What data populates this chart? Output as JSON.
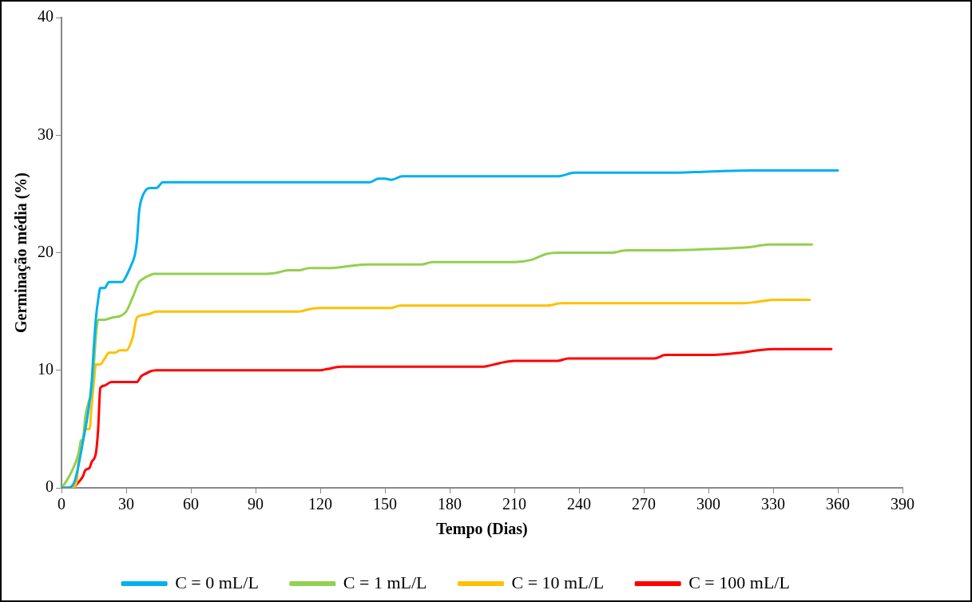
{
  "chart_data": {
    "type": "line",
    "xlabel": "Tempo (Dias)",
    "ylabel": "Germinação média (%)",
    "xlim": [
      0,
      390
    ],
    "xticks": [
      0,
      30,
      60,
      90,
      120,
      150,
      180,
      210,
      240,
      270,
      300,
      330,
      360,
      390
    ],
    "ylim": [
      0,
      40
    ],
    "yticks": [
      0,
      10,
      20,
      30,
      40
    ],
    "grid": false,
    "legend": "bottom",
    "marker": "none",
    "line_style": "solid",
    "series": [
      {
        "name": "C = 0 mL/L",
        "color": "#00b0f0",
        "x": [
          0,
          3,
          6,
          8,
          10,
          12,
          14,
          15,
          16,
          17,
          18,
          20,
          22,
          25,
          28,
          30,
          32,
          34,
          35,
          36,
          37,
          39,
          41,
          44,
          47,
          50,
          138,
          143,
          147,
          150,
          153,
          158,
          230,
          238,
          280,
          300,
          320,
          360
        ],
        "values": [
          0,
          0,
          0.5,
          2,
          4,
          6,
          9,
          12,
          14.5,
          16,
          17,
          17,
          17.5,
          17.5,
          17.5,
          18,
          18.8,
          19.8,
          21,
          23.5,
          24.5,
          25.3,
          25.5,
          25.5,
          26,
          26,
          26,
          26,
          26.3,
          26.3,
          26.2,
          26.5,
          26.5,
          26.8,
          26.8,
          26.9,
          27,
          27
        ]
      },
      {
        "name": "C = 1 mL/L",
        "color": "#92d050",
        "x": [
          0,
          2,
          5,
          8,
          9,
          10,
          11,
          13,
          14,
          16,
          17,
          20,
          22,
          24,
          27,
          30,
          33,
          36,
          38,
          40,
          43,
          95,
          100,
          105,
          110,
          115,
          120,
          125,
          135,
          142,
          167,
          172,
          210,
          218,
          225,
          230,
          255,
          262,
          280,
          300,
          320,
          328,
          348
        ],
        "values": [
          0,
          0.5,
          1.5,
          3,
          4,
          4.2,
          6,
          7.5,
          8,
          13,
          14.3,
          14.3,
          14.4,
          14.5,
          14.6,
          15,
          16.2,
          17.5,
          17.8,
          18,
          18.2,
          18.2,
          18.3,
          18.5,
          18.5,
          18.7,
          18.7,
          18.7,
          18.9,
          19,
          19,
          19.2,
          19.2,
          19.4,
          19.9,
          20,
          20,
          20.2,
          20.2,
          20.3,
          20.5,
          20.7,
          20.7
        ]
      },
      {
        "name": "C = 10 mL/L",
        "color": "#ffc000",
        "x": [
          0,
          5,
          7,
          8,
          10,
          11,
          13,
          14,
          15,
          16,
          18,
          20,
          22,
          25,
          27,
          30,
          33,
          35,
          38,
          41,
          44,
          110,
          115,
          120,
          153,
          157,
          225,
          232,
          315,
          322,
          330,
          347
        ],
        "values": [
          0,
          0,
          0.5,
          2.5,
          4,
          5,
          5,
          7,
          9,
          10.5,
          10.5,
          11,
          11.5,
          11.5,
          11.7,
          11.7,
          12.8,
          14.5,
          14.7,
          14.8,
          15,
          15,
          15.2,
          15.3,
          15.3,
          15.5,
          15.5,
          15.7,
          15.7,
          15.8,
          16,
          16
        ]
      },
      {
        "name": "C = 100 mL/L",
        "color": "#ff0000",
        "x": [
          0,
          5,
          8,
          10,
          11,
          13,
          14,
          16,
          17,
          18,
          20,
          23,
          35,
          37,
          39,
          41,
          44,
          120,
          123,
          130,
          195,
          203,
          210,
          230,
          235,
          275,
          280,
          300,
          315,
          323,
          330,
          357
        ],
        "values": [
          0,
          0,
          0.5,
          1,
          1.5,
          1.7,
          2.2,
          3,
          5,
          8.5,
          8.7,
          9,
          9,
          9.5,
          9.7,
          9.9,
          10,
          10,
          10.1,
          10.3,
          10.3,
          10.6,
          10.8,
          10.8,
          11,
          11,
          11.3,
          11.3,
          11.5,
          11.7,
          11.8,
          11.8
        ]
      }
    ]
  }
}
